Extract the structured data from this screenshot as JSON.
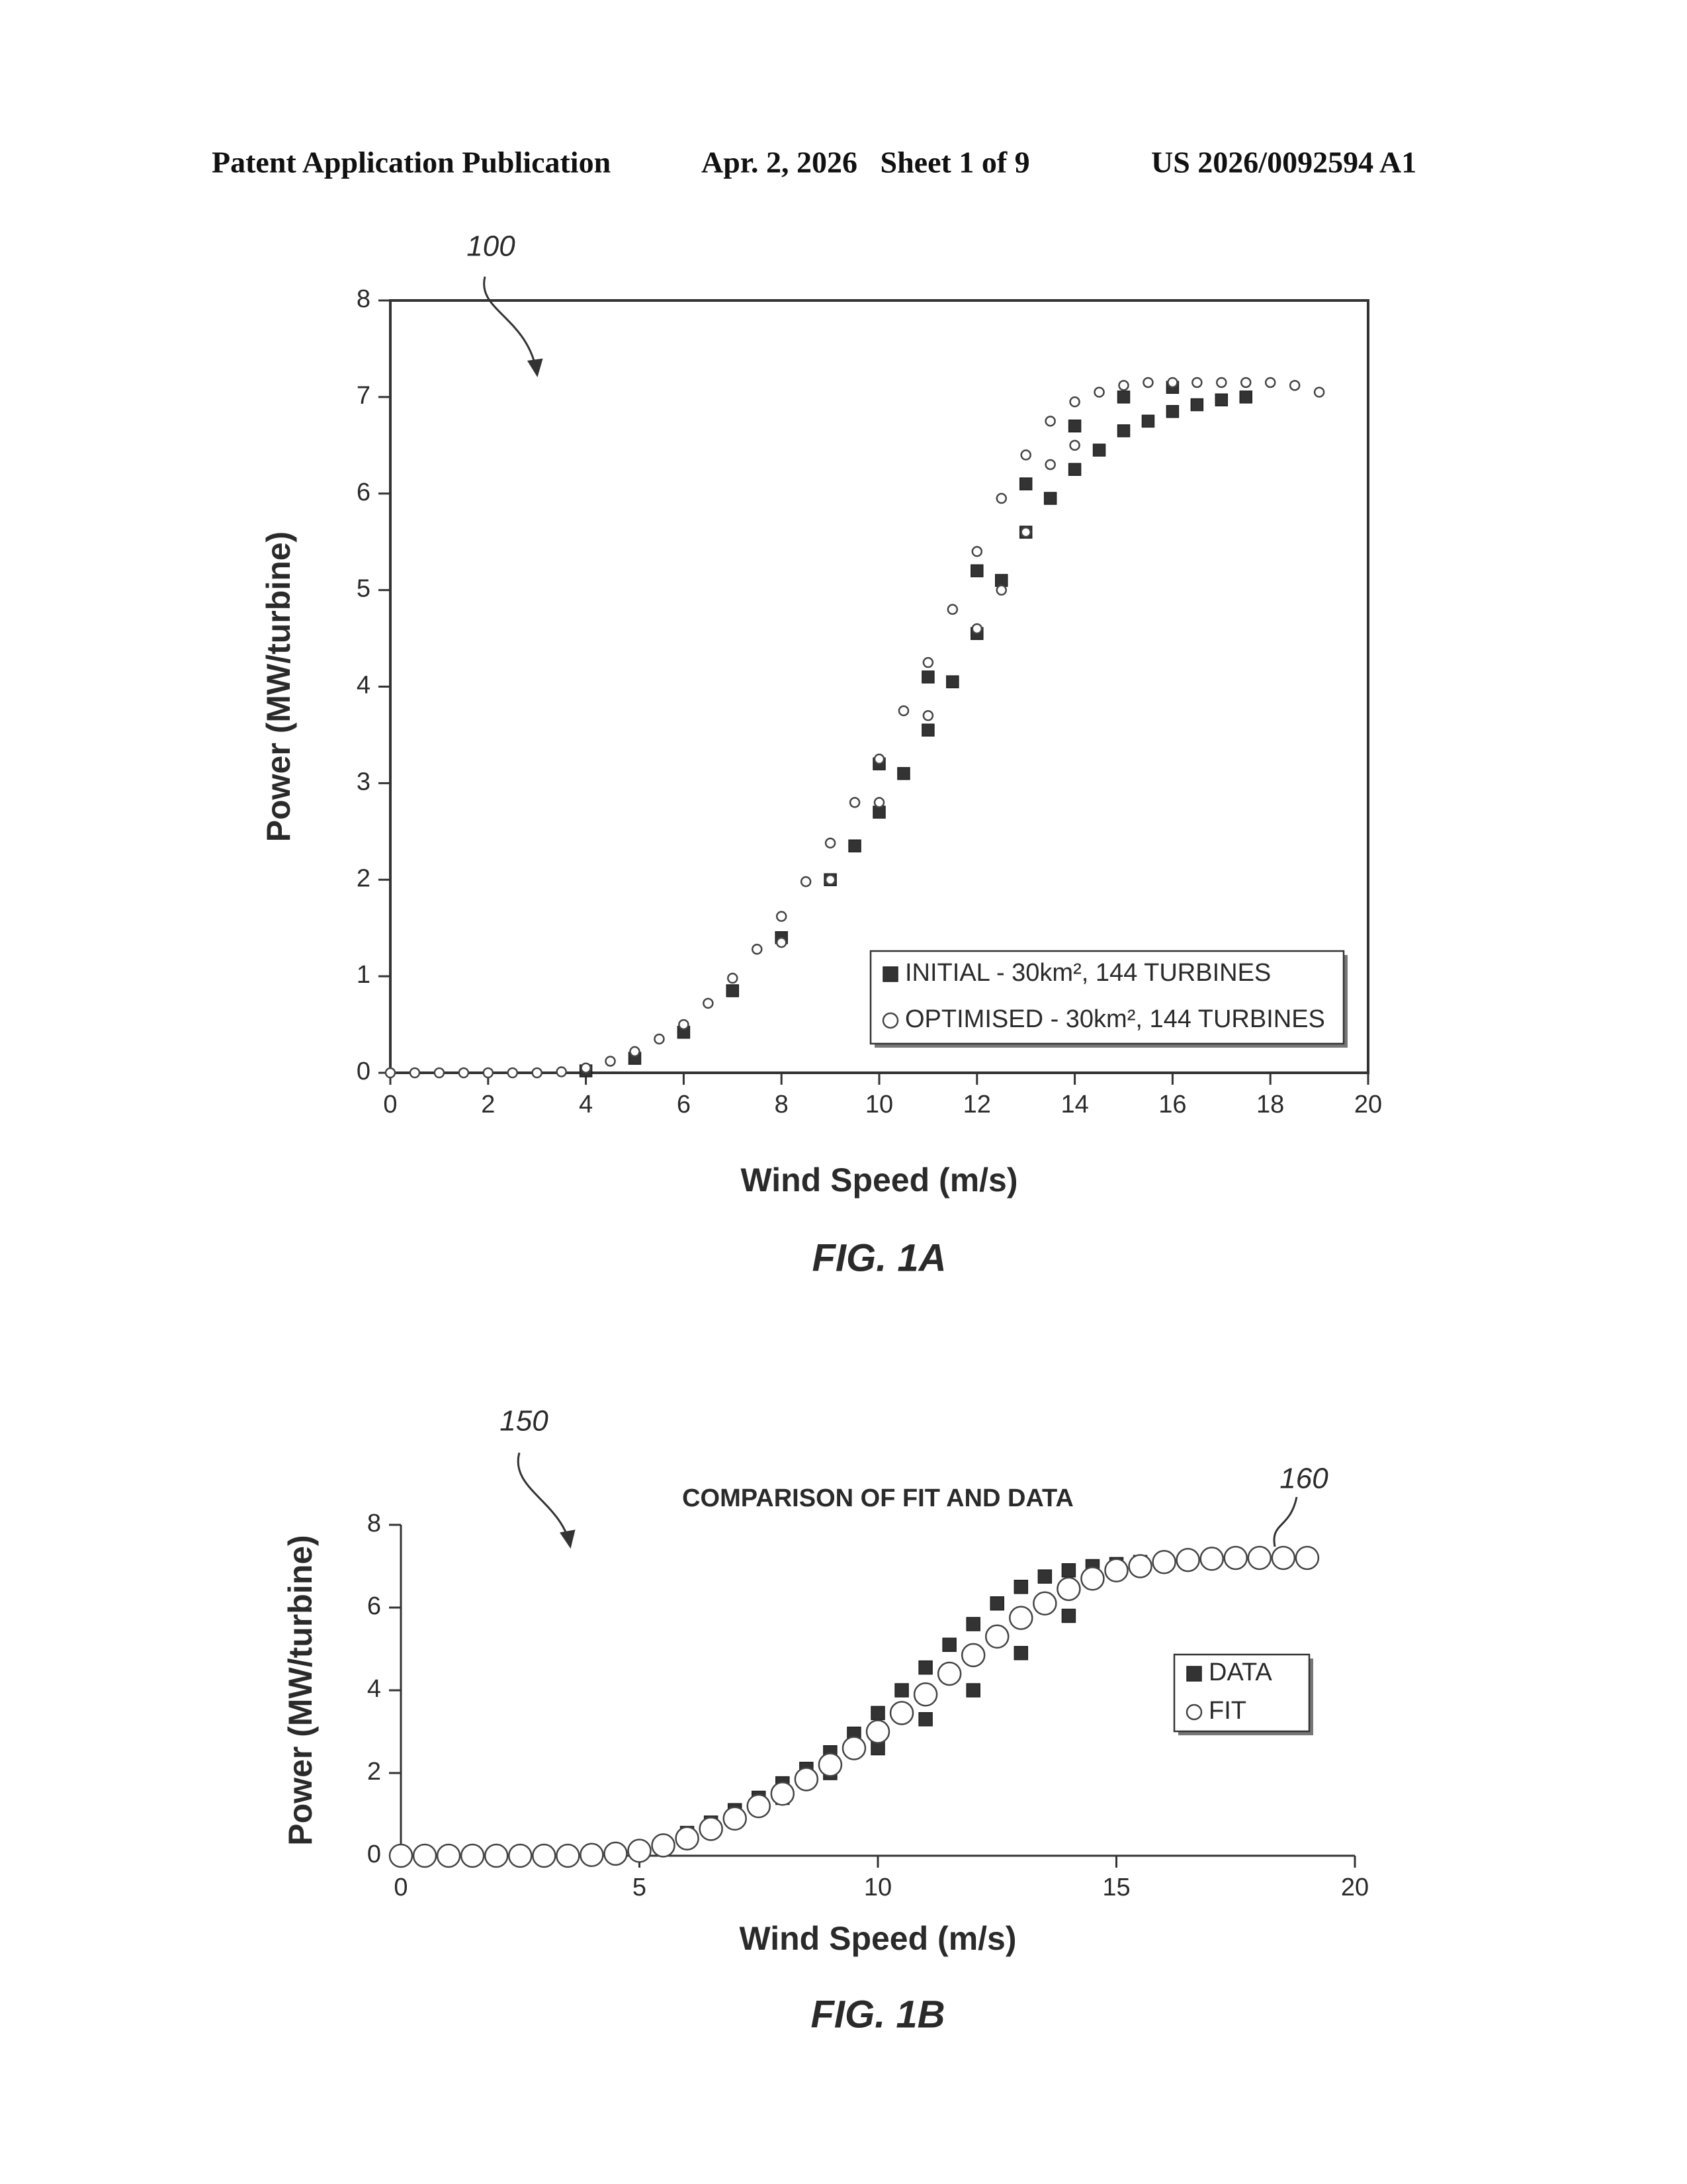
{
  "header": {
    "left": "Patent Application Publication",
    "middle": "Apr. 2, 2026   Sheet 1 of 9",
    "right": "US 2026/0092594 A1"
  },
  "chart_data": [
    {
      "type": "scatter",
      "reference_numeral": "100",
      "figure_label": "FIG. 1A",
      "x_label": "Wind Speed (m/s)",
      "y_label": "Power (MW/turbine)",
      "xlim": [
        0,
        20
      ],
      "ylim": [
        0,
        8
      ],
      "xticks": [
        0,
        2,
        4,
        6,
        8,
        10,
        12,
        14,
        16,
        18,
        20
      ],
      "yticks": [
        0,
        1,
        2,
        3,
        4,
        5,
        6,
        7,
        8
      ],
      "series": [
        {
          "name": "INITIAL - 30km², 144 TURBINES",
          "marker": "square",
          "color": "#333333",
          "x": [
            4,
            5,
            6,
            7,
            8,
            9,
            9.5,
            10,
            10.5,
            11,
            11.5,
            12,
            12.5,
            13,
            13.5,
            14,
            14.5,
            15,
            15.5,
            16,
            16.5,
            17,
            17.5,
            10,
            11,
            12,
            13,
            14,
            15,
            16
          ],
          "values": [
            0.02,
            0.15,
            0.42,
            0.85,
            1.4,
            2.0,
            2.35,
            2.7,
            3.1,
            3.55,
            4.05,
            4.55,
            5.1,
            5.6,
            5.95,
            6.25,
            6.45,
            6.65,
            6.75,
            6.85,
            6.92,
            6.97,
            7.0,
            3.2,
            4.1,
            5.2,
            6.1,
            6.7,
            7.0,
            7.1
          ]
        },
        {
          "name": "OPTIMISED - 30km², 144 TURBINES",
          "marker": "circle",
          "color": "#ffffff",
          "x": [
            0,
            0.5,
            1,
            1.5,
            2,
            2.5,
            3,
            3.5,
            4,
            4.5,
            5,
            5.5,
            6,
            6.5,
            7,
            7.5,
            8,
            8.5,
            9,
            9.5,
            10,
            10.5,
            11,
            11.5,
            12,
            12.5,
            13,
            13.5,
            14,
            14.5,
            15,
            15.5,
            16,
            16.5,
            17,
            17.5,
            18,
            18.5,
            19,
            9,
            10,
            11,
            12,
            13,
            14,
            8,
            12.5,
            13.5
          ],
          "values": [
            0,
            0,
            0,
            0,
            0,
            0,
            0,
            0.01,
            0.05,
            0.12,
            0.22,
            0.35,
            0.5,
            0.72,
            0.98,
            1.28,
            1.62,
            1.98,
            2.38,
            2.8,
            3.25,
            3.75,
            4.25,
            4.8,
            5.4,
            5.95,
            6.4,
            6.75,
            6.95,
            7.05,
            7.12,
            7.15,
            7.15,
            7.15,
            7.15,
            7.15,
            7.15,
            7.12,
            7.05,
            2.0,
            2.8,
            3.7,
            4.6,
            5.6,
            6.5,
            1.35,
            5.0,
            6.3
          ]
        }
      ]
    },
    {
      "type": "scatter",
      "title": "COMPARISON OF FIT AND DATA",
      "reference_numeral": "150",
      "curve_numeral": "160",
      "figure_label": "FIG. 1B",
      "x_label": "Wind Speed (m/s)",
      "y_label": "Power (MW/turbine)",
      "xlim": [
        0,
        20
      ],
      "ylim": [
        0,
        8
      ],
      "xticks": [
        0,
        5,
        10,
        15,
        20
      ],
      "yticks": [
        0,
        2,
        4,
        6,
        8
      ],
      "series": [
        {
          "name": "DATA",
          "marker": "square",
          "color": "#333333",
          "x": [
            4.5,
            5,
            5.5,
            6,
            6.5,
            7,
            7.5,
            8,
            8.5,
            9,
            9.5,
            10,
            10.5,
            11,
            11.5,
            12,
            12.5,
            13,
            13.5,
            14,
            14.5,
            15,
            15.5,
            16,
            8,
            9,
            10,
            11,
            12,
            13,
            14
          ],
          "values": [
            0.05,
            0.15,
            0.3,
            0.55,
            0.8,
            1.1,
            1.4,
            1.75,
            2.1,
            2.5,
            2.95,
            3.45,
            4.0,
            4.55,
            5.1,
            5.6,
            6.1,
            6.5,
            6.75,
            6.9,
            7.0,
            7.05,
            7.1,
            7.15,
            1.4,
            2.0,
            2.6,
            3.3,
            4.0,
            4.9,
            5.8
          ]
        },
        {
          "name": "FIT",
          "marker": "circle",
          "color": "#ffffff",
          "x": [
            0,
            0.5,
            1,
            1.5,
            2,
            2.5,
            3,
            3.5,
            4,
            4.5,
            5,
            5.5,
            6,
            6.5,
            7,
            7.5,
            8,
            8.5,
            9,
            9.5,
            10,
            10.5,
            11,
            11.5,
            12,
            12.5,
            13,
            13.5,
            14,
            14.5,
            15,
            15.5,
            16,
            16.5,
            17,
            17.5,
            18,
            18.5,
            19
          ],
          "values": [
            0,
            0,
            0,
            0,
            0,
            0,
            0,
            0,
            0.02,
            0.05,
            0.12,
            0.25,
            0.42,
            0.65,
            0.9,
            1.2,
            1.5,
            1.85,
            2.2,
            2.6,
            3.0,
            3.45,
            3.9,
            4.4,
            4.85,
            5.3,
            5.75,
            6.1,
            6.45,
            6.7,
            6.9,
            7.0,
            7.1,
            7.15,
            7.18,
            7.2,
            7.2,
            7.2,
            7.2
          ]
        }
      ]
    }
  ]
}
